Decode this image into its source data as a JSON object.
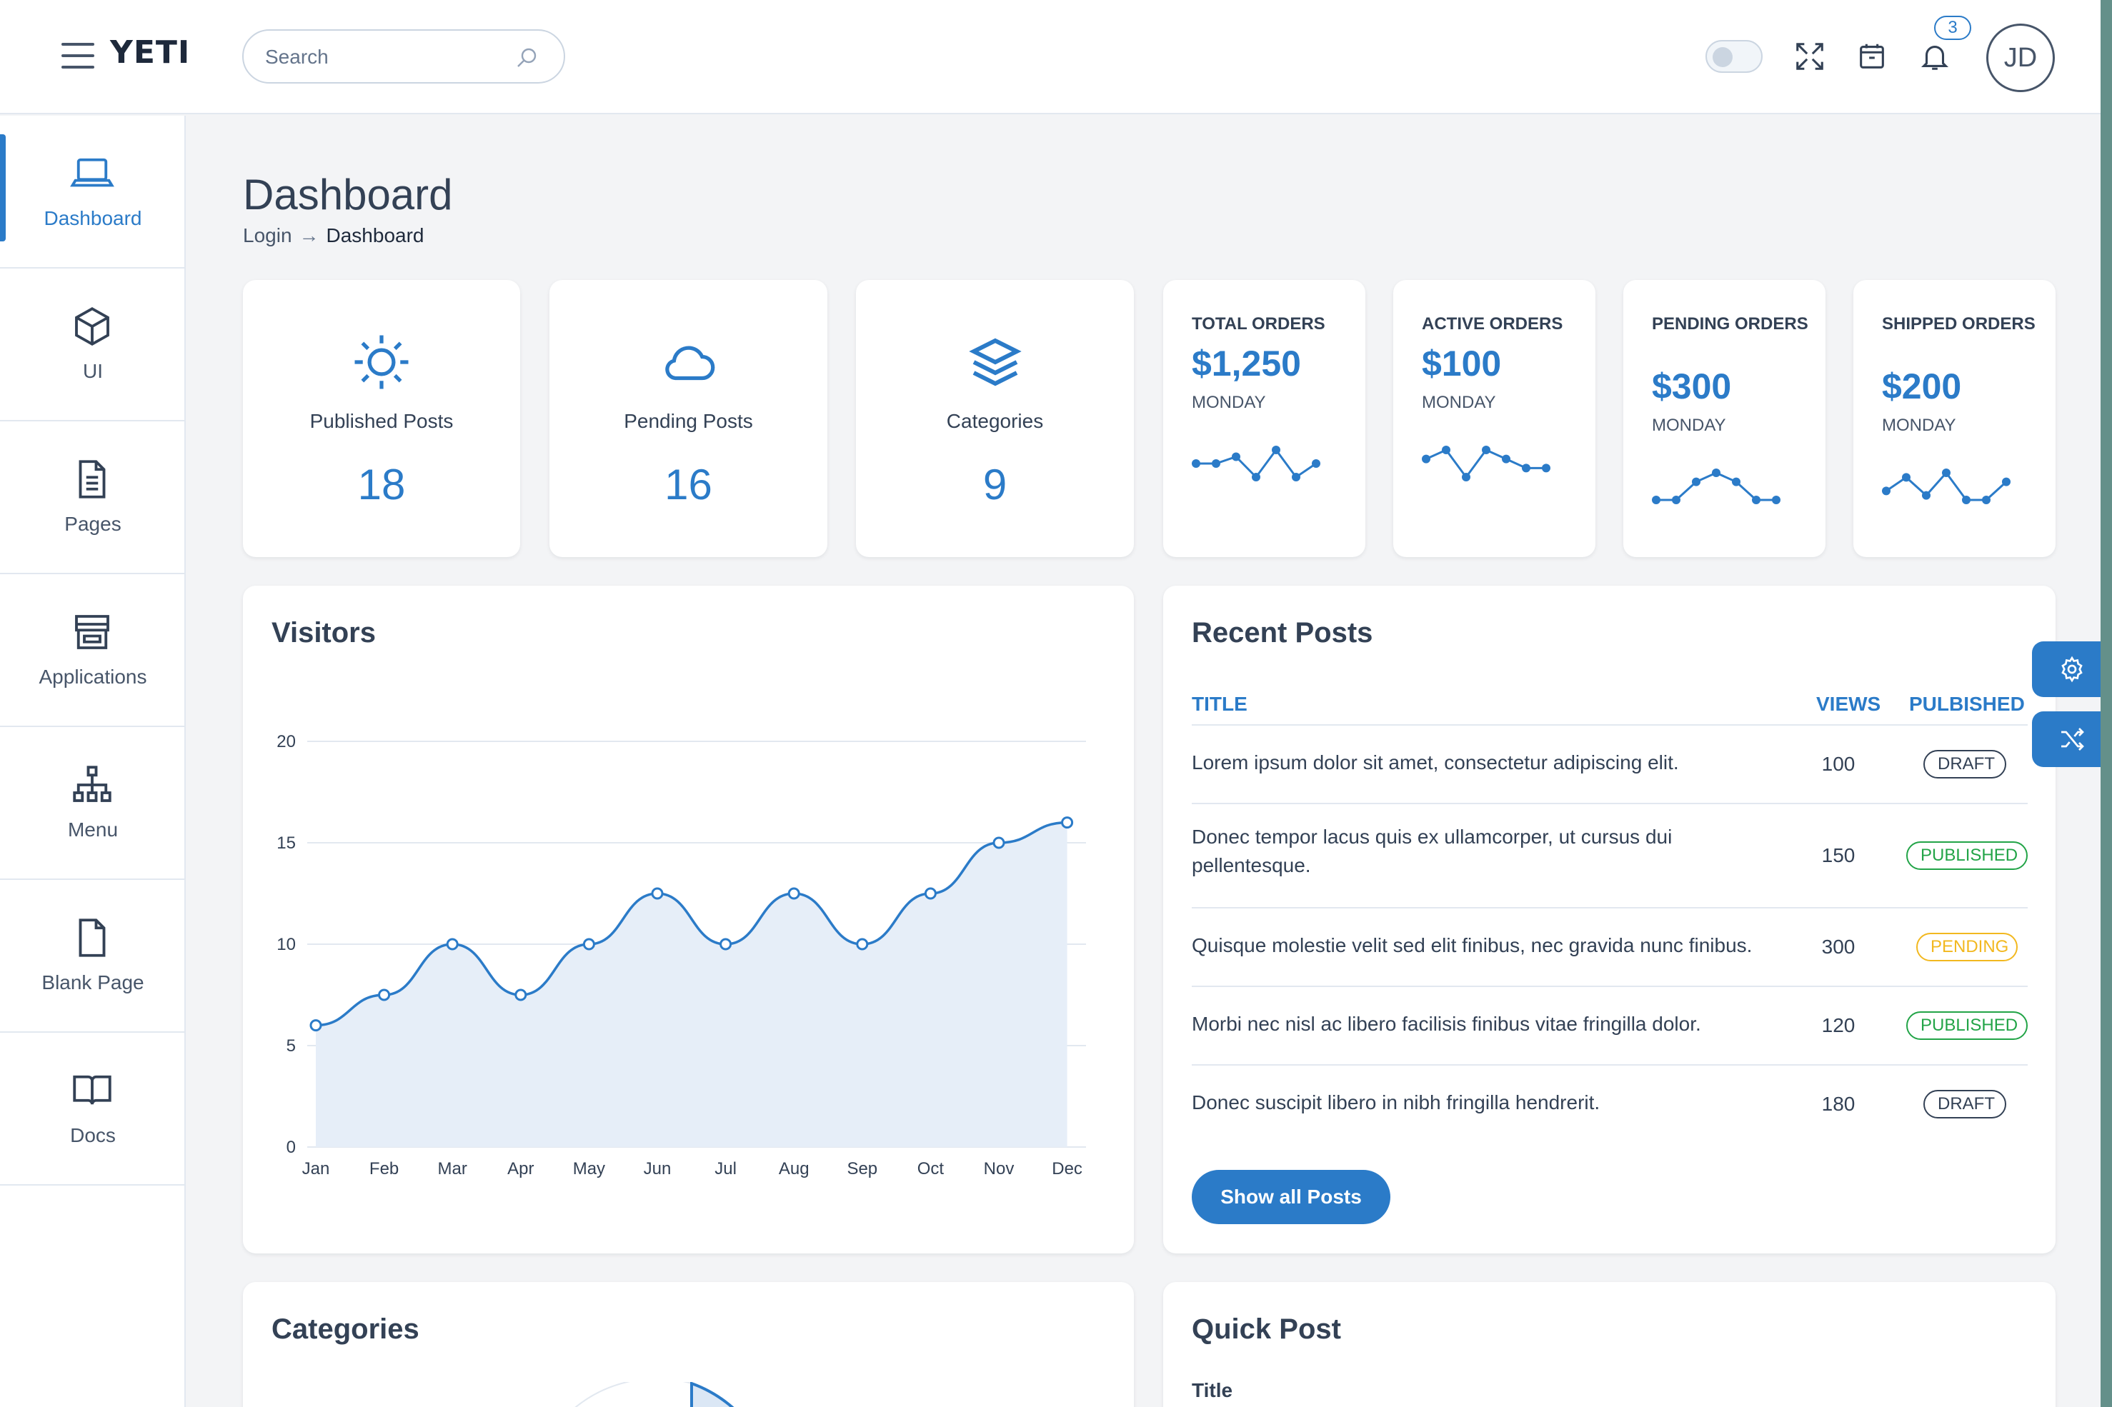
{
  "app": {
    "brand": "YETI"
  },
  "search": {
    "placeholder": "Search"
  },
  "notifications": {
    "count": "3"
  },
  "user": {
    "initials": "JD"
  },
  "sidebar": {
    "items": [
      {
        "label": "Dashboard",
        "icon": "laptop-icon",
        "active": true
      },
      {
        "label": "UI",
        "icon": "cube-icon"
      },
      {
        "label": "Pages",
        "icon": "document-icon"
      },
      {
        "label": "Applications",
        "icon": "store-icon"
      },
      {
        "label": "Menu",
        "icon": "sitemap-icon"
      },
      {
        "label": "Blank Page",
        "icon": "blank-page-icon"
      },
      {
        "label": "Docs",
        "icon": "book-icon"
      }
    ]
  },
  "header": {
    "title": "Dashboard",
    "breadcrumb": [
      "Login",
      "Dashboard"
    ]
  },
  "stats": [
    {
      "label": "Published Posts",
      "value": "18",
      "icon": "sun-icon"
    },
    {
      "label": "Pending Posts",
      "value": "16",
      "icon": "cloud-icon"
    },
    {
      "label": "Categories",
      "value": "9",
      "icon": "layers-icon"
    }
  ],
  "orders": [
    {
      "label": "TOTAL ORDERS",
      "value": "$1,250",
      "day": "MONDAY",
      "spark": [
        6,
        6,
        7,
        4,
        8,
        4,
        6
      ]
    },
    {
      "label": "ACTIVE ORDERS",
      "value": "$100",
      "day": "MONDAY",
      "spark": [
        6,
        7,
        4,
        7,
        6,
        5,
        5
      ]
    },
    {
      "label": "PENDING ORDERS",
      "value": "$300",
      "day": "MONDAY",
      "spark": [
        4,
        4,
        6,
        7,
        6,
        4,
        4
      ]
    },
    {
      "label": "SHIPPED ORDERS",
      "value": "$200",
      "day": "MONDAY",
      "spark": [
        4,
        7,
        3,
        8,
        2,
        2,
        6
      ]
    }
  ],
  "visitors": {
    "title": "Visitors"
  },
  "chart_data": {
    "type": "area",
    "title": "Visitors",
    "categories": [
      "Jan",
      "Feb",
      "Mar",
      "Apr",
      "May",
      "Jun",
      "Jul",
      "Aug",
      "Sep",
      "Oct",
      "Nov",
      "Dec"
    ],
    "values": [
      6,
      7.5,
      10,
      7.5,
      10,
      12.5,
      10,
      12.5,
      10,
      12.5,
      15,
      16
    ],
    "yticks": [
      0,
      5,
      10,
      15,
      20
    ],
    "ylim": [
      0,
      20
    ],
    "grid": true,
    "colors": {
      "line": "#2b7bc8",
      "fill": "#e6eef8"
    }
  },
  "recent_posts": {
    "title": "Recent Posts",
    "columns": [
      "TITLE",
      "VIEWS",
      "PULBISHED"
    ],
    "rows": [
      {
        "title": "Lorem ipsum dolor sit amet, consectetur adipiscing elit.",
        "views": "100",
        "status": "DRAFT"
      },
      {
        "title": "Donec tempor lacus quis ex ullamcorper, ut cursus dui pellentesque.",
        "views": "150",
        "status": "PUBLISHED"
      },
      {
        "title": "Quisque molestie velit sed elit finibus, nec gravida nunc finibus.",
        "views": "300",
        "status": "PENDING"
      },
      {
        "title": "Morbi nec nisl ac libero facilisis finibus vitae fringilla dolor.",
        "views": "120",
        "status": "PUBLISHED"
      },
      {
        "title": "Donec suscipit libero in nibh fringilla hendrerit.",
        "views": "180",
        "status": "DRAFT"
      }
    ],
    "button": "Show all Posts"
  },
  "categories_card": {
    "title": "Categories"
  },
  "quick_post": {
    "title": "Quick Post",
    "field_label": "Title"
  },
  "floating": [
    "gear-icon",
    "shuffle-icon"
  ],
  "colors": {
    "accent": "#2b7bc8",
    "published": "#22a447",
    "pending": "#f2b81f",
    "draft": "#334155"
  }
}
